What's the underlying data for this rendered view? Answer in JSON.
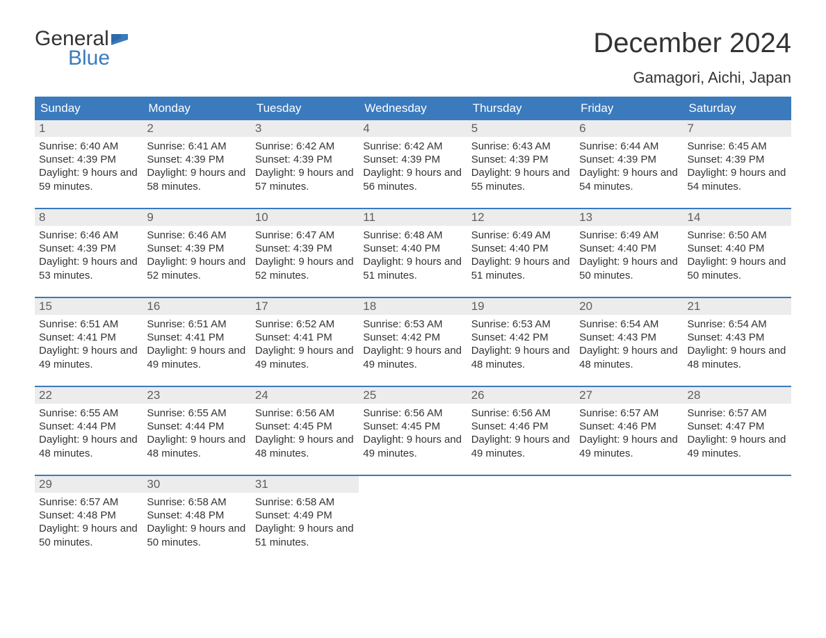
{
  "logo": {
    "general": "General",
    "blue": "Blue",
    "flag_color": "#3a7abd",
    "text_color_dark": "#333333"
  },
  "header": {
    "month_title": "December 2024",
    "location": "Gamagori, Aichi, Japan"
  },
  "colors": {
    "header_bg": "#3a7abd",
    "header_text": "#ffffff",
    "daynum_bg": "#ececec",
    "daynum_text": "#5e5e5e",
    "body_text": "#333333",
    "week_border": "#3a7abd",
    "page_bg": "#ffffff"
  },
  "typography": {
    "month_title_fontsize": 40,
    "location_fontsize": 22,
    "dayheader_fontsize": 17,
    "daynum_fontsize": 17,
    "dayinfo_fontsize": 15,
    "font_family": "Arial"
  },
  "labels": {
    "sunrise": "Sunrise:",
    "sunset": "Sunset:",
    "daylight": "Daylight:"
  },
  "day_names": [
    "Sunday",
    "Monday",
    "Tuesday",
    "Wednesday",
    "Thursday",
    "Friday",
    "Saturday"
  ],
  "weeks": [
    [
      {
        "n": "1",
        "sunrise": "6:40 AM",
        "sunset": "4:39 PM",
        "daylight": "9 hours and 59 minutes."
      },
      {
        "n": "2",
        "sunrise": "6:41 AM",
        "sunset": "4:39 PM",
        "daylight": "9 hours and 58 minutes."
      },
      {
        "n": "3",
        "sunrise": "6:42 AM",
        "sunset": "4:39 PM",
        "daylight": "9 hours and 57 minutes."
      },
      {
        "n": "4",
        "sunrise": "6:42 AM",
        "sunset": "4:39 PM",
        "daylight": "9 hours and 56 minutes."
      },
      {
        "n": "5",
        "sunrise": "6:43 AM",
        "sunset": "4:39 PM",
        "daylight": "9 hours and 55 minutes."
      },
      {
        "n": "6",
        "sunrise": "6:44 AM",
        "sunset": "4:39 PM",
        "daylight": "9 hours and 54 minutes."
      },
      {
        "n": "7",
        "sunrise": "6:45 AM",
        "sunset": "4:39 PM",
        "daylight": "9 hours and 54 minutes."
      }
    ],
    [
      {
        "n": "8",
        "sunrise": "6:46 AM",
        "sunset": "4:39 PM",
        "daylight": "9 hours and 53 minutes."
      },
      {
        "n": "9",
        "sunrise": "6:46 AM",
        "sunset": "4:39 PM",
        "daylight": "9 hours and 52 minutes."
      },
      {
        "n": "10",
        "sunrise": "6:47 AM",
        "sunset": "4:39 PM",
        "daylight": "9 hours and 52 minutes."
      },
      {
        "n": "11",
        "sunrise": "6:48 AM",
        "sunset": "4:40 PM",
        "daylight": "9 hours and 51 minutes."
      },
      {
        "n": "12",
        "sunrise": "6:49 AM",
        "sunset": "4:40 PM",
        "daylight": "9 hours and 51 minutes."
      },
      {
        "n": "13",
        "sunrise": "6:49 AM",
        "sunset": "4:40 PM",
        "daylight": "9 hours and 50 minutes."
      },
      {
        "n": "14",
        "sunrise": "6:50 AM",
        "sunset": "4:40 PM",
        "daylight": "9 hours and 50 minutes."
      }
    ],
    [
      {
        "n": "15",
        "sunrise": "6:51 AM",
        "sunset": "4:41 PM",
        "daylight": "9 hours and 49 minutes."
      },
      {
        "n": "16",
        "sunrise": "6:51 AM",
        "sunset": "4:41 PM",
        "daylight": "9 hours and 49 minutes."
      },
      {
        "n": "17",
        "sunrise": "6:52 AM",
        "sunset": "4:41 PM",
        "daylight": "9 hours and 49 minutes."
      },
      {
        "n": "18",
        "sunrise": "6:53 AM",
        "sunset": "4:42 PM",
        "daylight": "9 hours and 49 minutes."
      },
      {
        "n": "19",
        "sunrise": "6:53 AM",
        "sunset": "4:42 PM",
        "daylight": "9 hours and 48 minutes."
      },
      {
        "n": "20",
        "sunrise": "6:54 AM",
        "sunset": "4:43 PM",
        "daylight": "9 hours and 48 minutes."
      },
      {
        "n": "21",
        "sunrise": "6:54 AM",
        "sunset": "4:43 PM",
        "daylight": "9 hours and 48 minutes."
      }
    ],
    [
      {
        "n": "22",
        "sunrise": "6:55 AM",
        "sunset": "4:44 PM",
        "daylight": "9 hours and 48 minutes."
      },
      {
        "n": "23",
        "sunrise": "6:55 AM",
        "sunset": "4:44 PM",
        "daylight": "9 hours and 48 minutes."
      },
      {
        "n": "24",
        "sunrise": "6:56 AM",
        "sunset": "4:45 PM",
        "daylight": "9 hours and 48 minutes."
      },
      {
        "n": "25",
        "sunrise": "6:56 AM",
        "sunset": "4:45 PM",
        "daylight": "9 hours and 49 minutes."
      },
      {
        "n": "26",
        "sunrise": "6:56 AM",
        "sunset": "4:46 PM",
        "daylight": "9 hours and 49 minutes."
      },
      {
        "n": "27",
        "sunrise": "6:57 AM",
        "sunset": "4:46 PM",
        "daylight": "9 hours and 49 minutes."
      },
      {
        "n": "28",
        "sunrise": "6:57 AM",
        "sunset": "4:47 PM",
        "daylight": "9 hours and 49 minutes."
      }
    ],
    [
      {
        "n": "29",
        "sunrise": "6:57 AM",
        "sunset": "4:48 PM",
        "daylight": "9 hours and 50 minutes."
      },
      {
        "n": "30",
        "sunrise": "6:58 AM",
        "sunset": "4:48 PM",
        "daylight": "9 hours and 50 minutes."
      },
      {
        "n": "31",
        "sunrise": "6:58 AM",
        "sunset": "4:49 PM",
        "daylight": "9 hours and 51 minutes."
      },
      null,
      null,
      null,
      null
    ]
  ]
}
